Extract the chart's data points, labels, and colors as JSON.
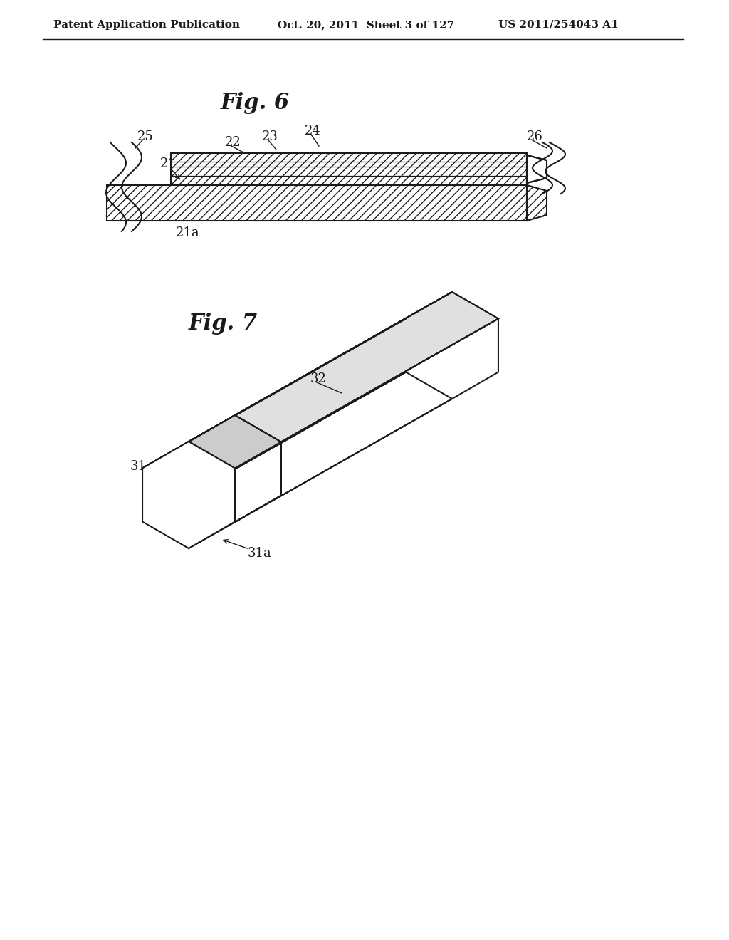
{
  "bg_color": "#ffffff",
  "header_left": "Patent Application Publication",
  "header_mid": "Oct. 20, 2011  Sheet 3 of 127",
  "header_right": "US 2011/254043 A1",
  "fig6_title": "Fig. 6",
  "fig7_title": "Fig. 7",
  "line_color": "#1a1a1a",
  "label_fontsize": 13,
  "fig_title_fontsize": 22,
  "header_fontsize": 11
}
